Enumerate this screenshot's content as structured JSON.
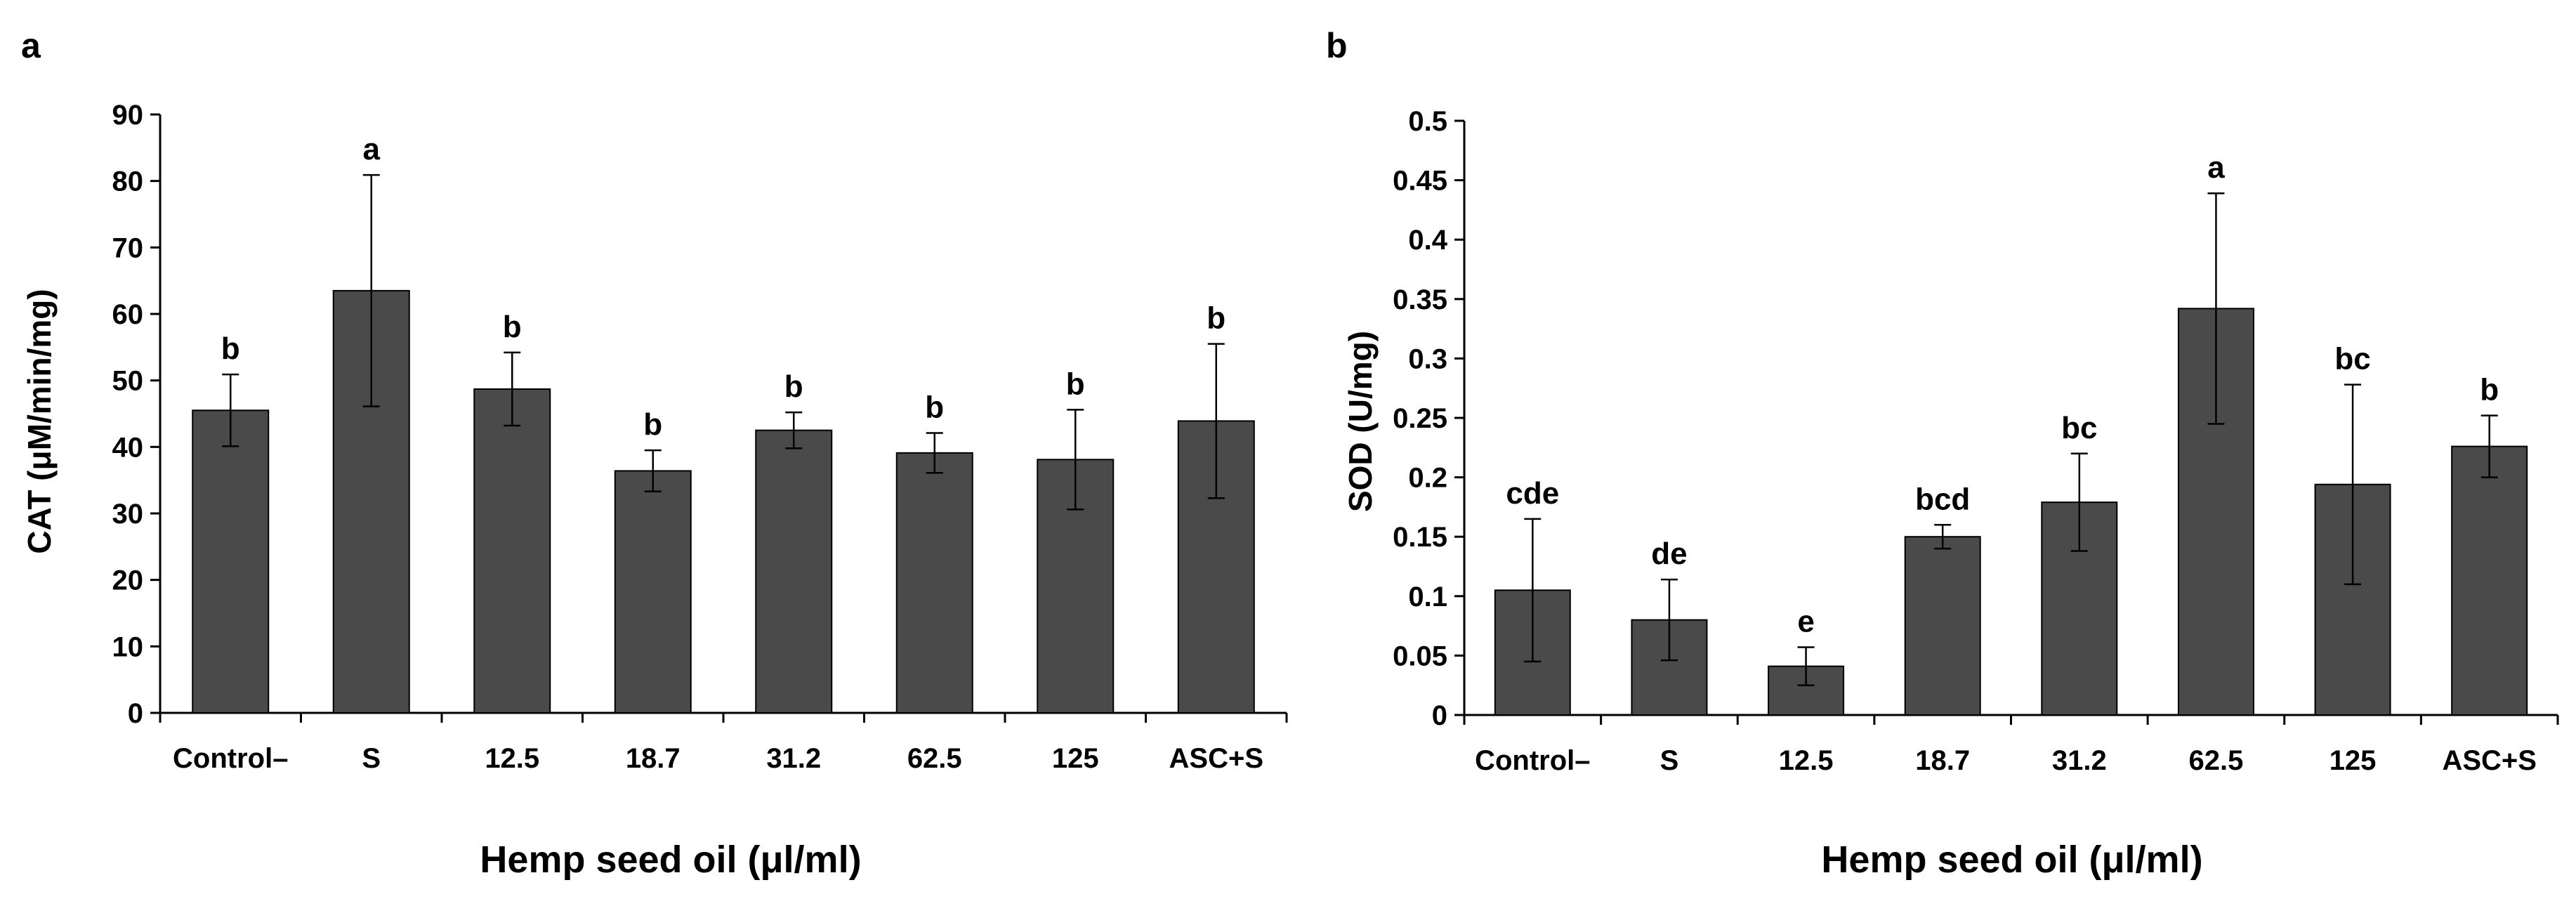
{
  "colors": {
    "bar": "#4a4a4a",
    "axis": "#000000",
    "background": "#ffffff"
  },
  "chart_data": [
    {
      "panel": "a",
      "type": "bar",
      "ylabel": "CAT (μM/min/mg)",
      "xlabel": "Hemp seed oil (μl/ml)",
      "ylim": [
        0,
        90
      ],
      "yticks": [
        0,
        10,
        20,
        30,
        40,
        50,
        60,
        70,
        80,
        90
      ],
      "ytick_labels": [
        "0",
        "10",
        "20",
        "30",
        "40",
        "50",
        "60",
        "70",
        "80",
        "90"
      ],
      "categories": [
        "Control–",
        "S",
        "12.5",
        "18.7",
        "31.2",
        "62.5",
        "125",
        "ASC+S"
      ],
      "values": [
        45.5,
        63.5,
        48.7,
        36.4,
        42.5,
        39.1,
        38.1,
        43.9
      ],
      "errors": [
        5.4,
        17.4,
        5.5,
        3.1,
        2.7,
        3.0,
        7.5,
        11.6
      ],
      "significance": [
        "b",
        "a",
        "b",
        "b",
        "b",
        "b",
        "b",
        "b"
      ]
    },
    {
      "panel": "b",
      "type": "bar",
      "ylabel": "SOD (U/mg)",
      "xlabel": "Hemp seed oil (μl/ml)",
      "ylim": [
        0,
        0.5
      ],
      "yticks": [
        0,
        0.05,
        0.1,
        0.15,
        0.2,
        0.25,
        0.3,
        0.35,
        0.4,
        0.45,
        0.5
      ],
      "ytick_labels": [
        "0",
        "0.05",
        "0.1",
        "0.15",
        "0.2",
        "0.25",
        "0.3",
        "0.35",
        "0.4",
        "0.45",
        "0.5"
      ],
      "categories": [
        "Control–",
        "S",
        "12.5",
        "18.7",
        "31.2",
        "62.5",
        "125",
        "ASC+S"
      ],
      "values": [
        0.105,
        0.08,
        0.041,
        0.15,
        0.179,
        0.342,
        0.194,
        0.226
      ],
      "errors": [
        0.06,
        0.034,
        0.016,
        0.01,
        0.041,
        0.097,
        0.084,
        0.026
      ],
      "significance": [
        "cde",
        "de",
        "e",
        "bcd",
        "bc",
        "a",
        "bc",
        "b"
      ]
    }
  ]
}
